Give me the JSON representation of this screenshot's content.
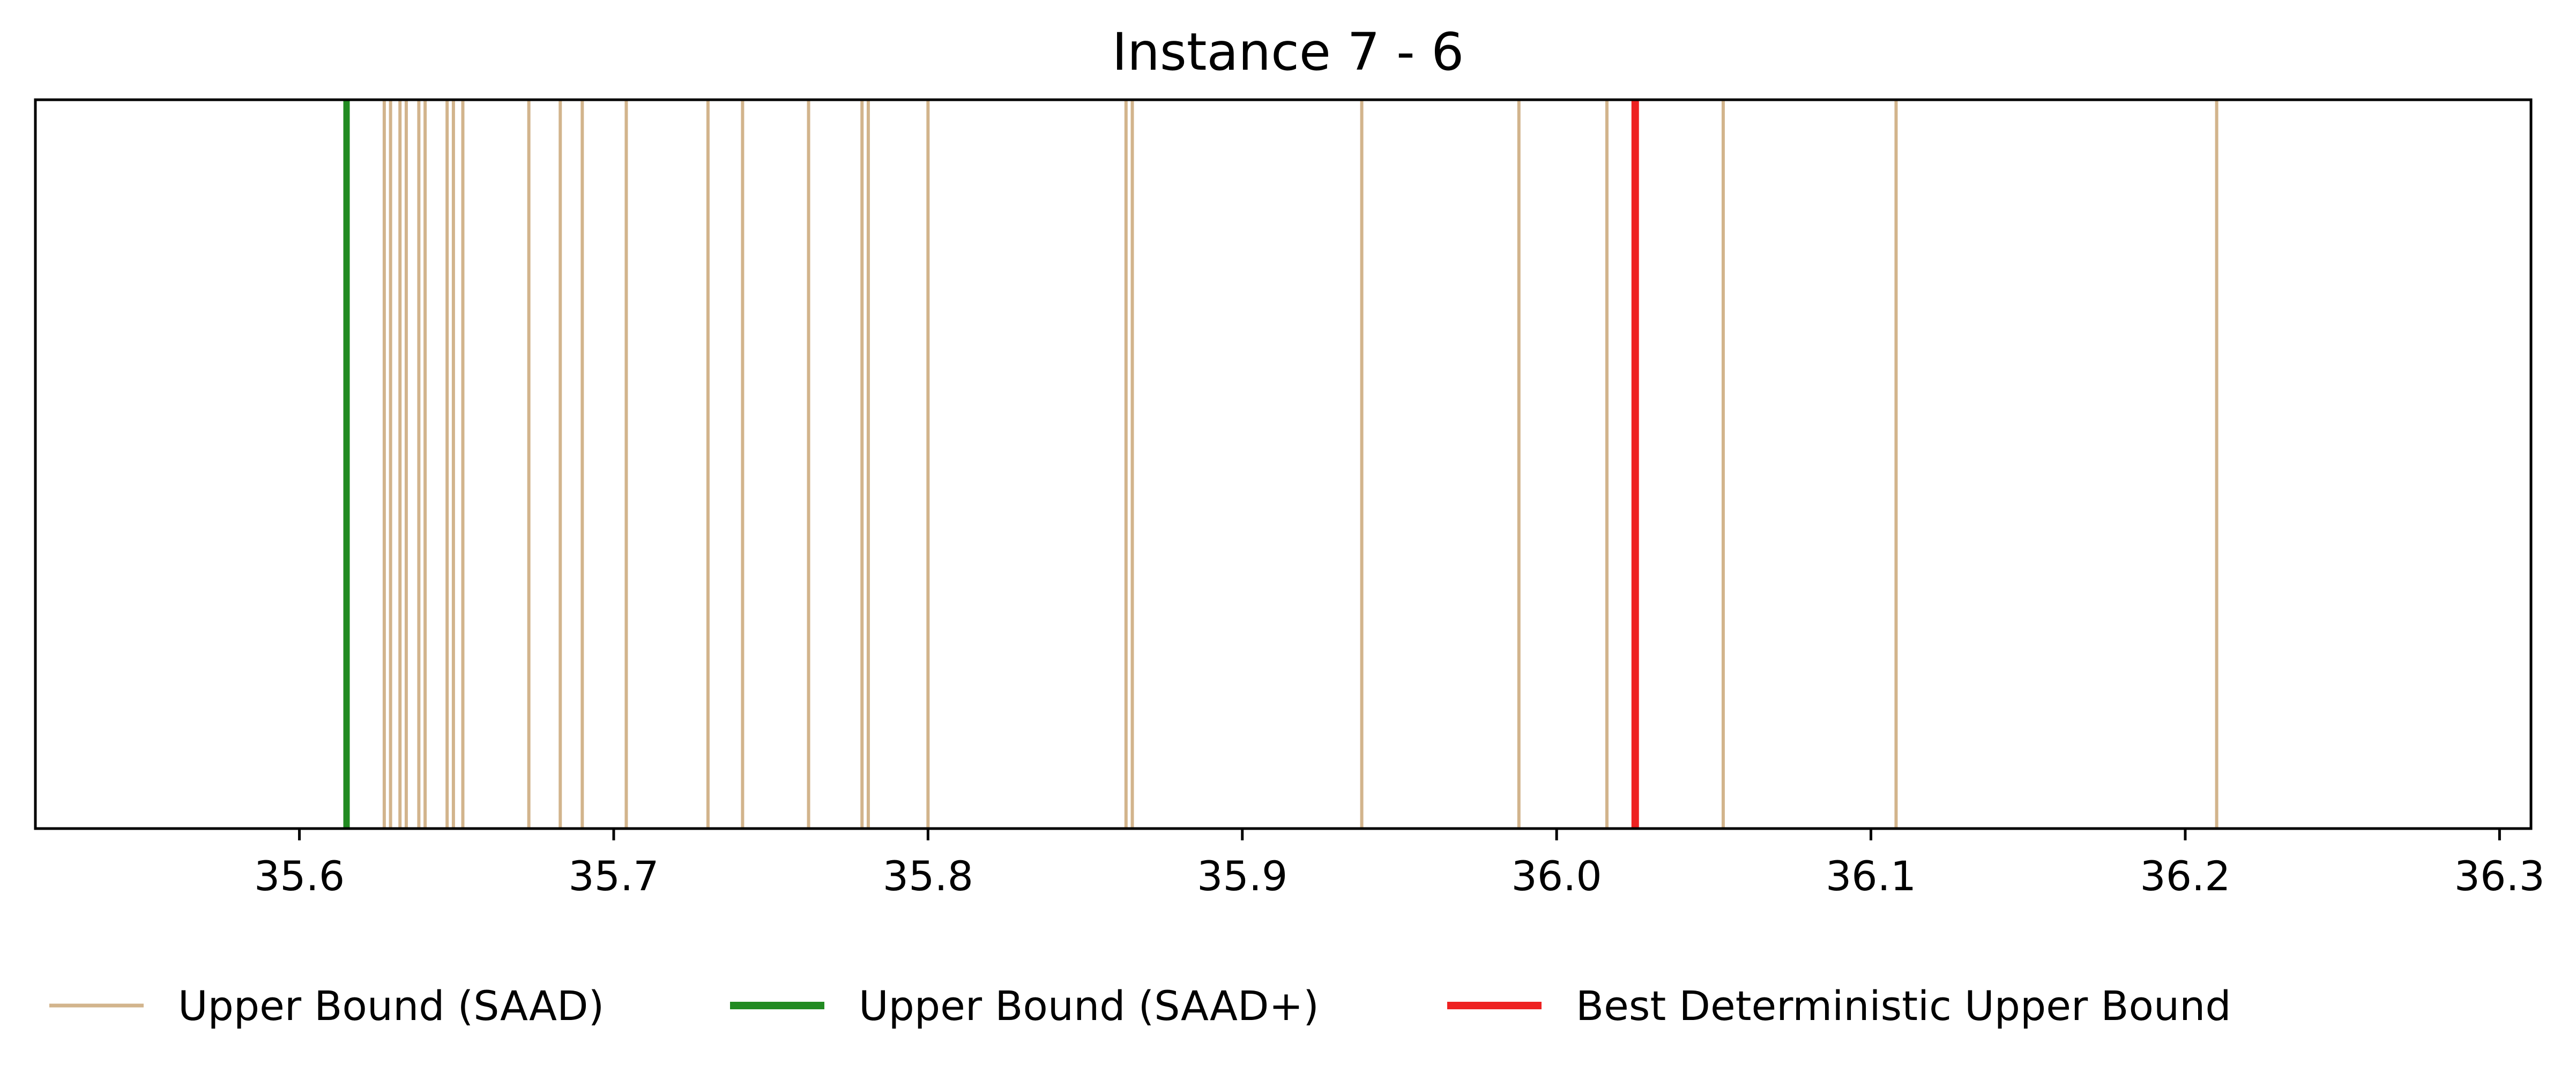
{
  "chart_data": {
    "type": "line",
    "title": "Instance 7 - 6",
    "xlabel": "",
    "ylabel": "",
    "xlim": [
      35.516,
      36.31
    ],
    "x_ticks": [
      "35.6",
      "35.7",
      "35.8",
      "35.9",
      "36.0",
      "36.1",
      "36.2",
      "36.3"
    ],
    "grid": false,
    "legend_position": "bottom",
    "series": [
      {
        "name": "Upper Bound (SAAD)",
        "color": "#d2b48c",
        "values": [
          35.627,
          35.629,
          35.632,
          35.634,
          35.638,
          35.64,
          35.647,
          35.649,
          35.652,
          35.673,
          35.683,
          35.69,
          35.704,
          35.73,
          35.741,
          35.762,
          35.779,
          35.781,
          35.8,
          35.863,
          35.865,
          35.938,
          35.988,
          36.016,
          36.053,
          36.108,
          36.21
        ]
      },
      {
        "name": "Upper Bound (SAAD+)",
        "color": "#228b22",
        "values": [
          35.615
        ]
      },
      {
        "name": "Best Deterministic Upper Bound",
        "color": "#ee2222",
        "values": [
          36.025
        ]
      }
    ]
  }
}
